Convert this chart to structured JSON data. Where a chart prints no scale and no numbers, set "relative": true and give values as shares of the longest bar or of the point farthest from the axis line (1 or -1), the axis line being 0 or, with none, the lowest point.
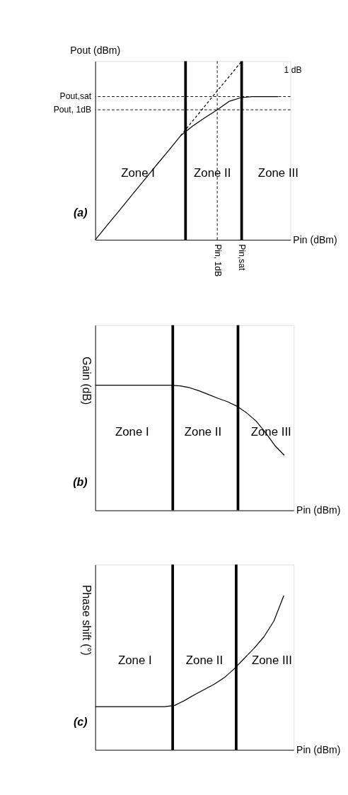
{
  "chart_data": [
    {
      "type": "line",
      "relative": true,
      "xlabel": "Pin (dBm)",
      "ylabel": "Pout (dBm)",
      "grid": false,
      "categories": [
        null,
        null,
        null,
        null,
        null,
        null,
        null,
        null,
        null,
        null,
        "Pin, 1dB",
        null,
        "Pin,sat",
        null,
        null,
        null,
        null
      ],
      "series": [
        {
          "color": "#000000",
          "values": [
            0,
            0.084,
            0.166,
            0.25,
            0.333,
            0.417,
            0.499,
            0.583,
            0.638,
            0.684,
            0.728,
            0.776,
            0.797,
            0.802,
            0.802,
            0.802,
            null
          ]
        },
        {
          "color": "#000000",
          "line_style": "dashed",
          "values": [
            null,
            null,
            null,
            null,
            null,
            null,
            null,
            0.583,
            0.667,
            0.75,
            0.834,
            0.916,
            1.0,
            null,
            null,
            null,
            null
          ]
        }
      ],
      "ref_lines": [
        {
          "axis": "y",
          "value": 0.802,
          "label": "Pout,sat",
          "line_style": "dashed",
          "color": "#000000"
        },
        {
          "axis": "y",
          "value": 0.728,
          "label": "Pout, 1dB",
          "line_style": "dashed",
          "color": "#000000"
        },
        {
          "axis": "x",
          "value": "Pin, 1dB",
          "line_style": "dashed",
          "color": "#000000"
        },
        {
          "axis": "x",
          "value": "Pin,sat",
          "line_style": "solid",
          "color": "#000000"
        }
      ],
      "annotations": [
        "(a)",
        "Zone I",
        "Zone II",
        "Zone III",
        "1 dB"
      ]
    },
    {
      "type": "line",
      "relative": true,
      "xlabel": "Pin (dBm)",
      "ylabel": "Gain (dB)",
      "grid": false,
      "categories": [
        null,
        null,
        null,
        null,
        null,
        null,
        null,
        null,
        null,
        null,
        null,
        null,
        null,
        null,
        null,
        null,
        null,
        null,
        null,
        null,
        null
      ],
      "series": [
        {
          "color": "#000000",
          "values": [
            1,
            1,
            1,
            1,
            1,
            1,
            1,
            1,
            1,
            0.995,
            0.98,
            0.955,
            0.925,
            0.895,
            0.868,
            0.832,
            0.78,
            0.715,
            0.623,
            0.518,
            0.44
          ]
        }
      ],
      "annotations": [
        "(b)",
        "Zone I",
        "Zone II",
        "Zone III"
      ]
    },
    {
      "type": "line",
      "relative": true,
      "xlabel": "Pin (dBm)",
      "ylabel": "Phase shift (°)",
      "grid": false,
      "categories": [
        null,
        null,
        null,
        null,
        null,
        null,
        null,
        null,
        null,
        null,
        null,
        null,
        null,
        null,
        null,
        null,
        null,
        null,
        null,
        null
      ],
      "series": [
        {
          "color": "#000000",
          "values": [
            0.28,
            0.28,
            0.28,
            0.28,
            0.28,
            0.28,
            0.28,
            0.28,
            0.288,
            0.32,
            0.357,
            0.392,
            0.426,
            0.468,
            0.525,
            0.592,
            0.658,
            0.733,
            0.835,
            1.0
          ]
        }
      ],
      "annotations": [
        "(c)",
        "Zone I",
        "Zone II",
        "Zone III"
      ]
    }
  ]
}
